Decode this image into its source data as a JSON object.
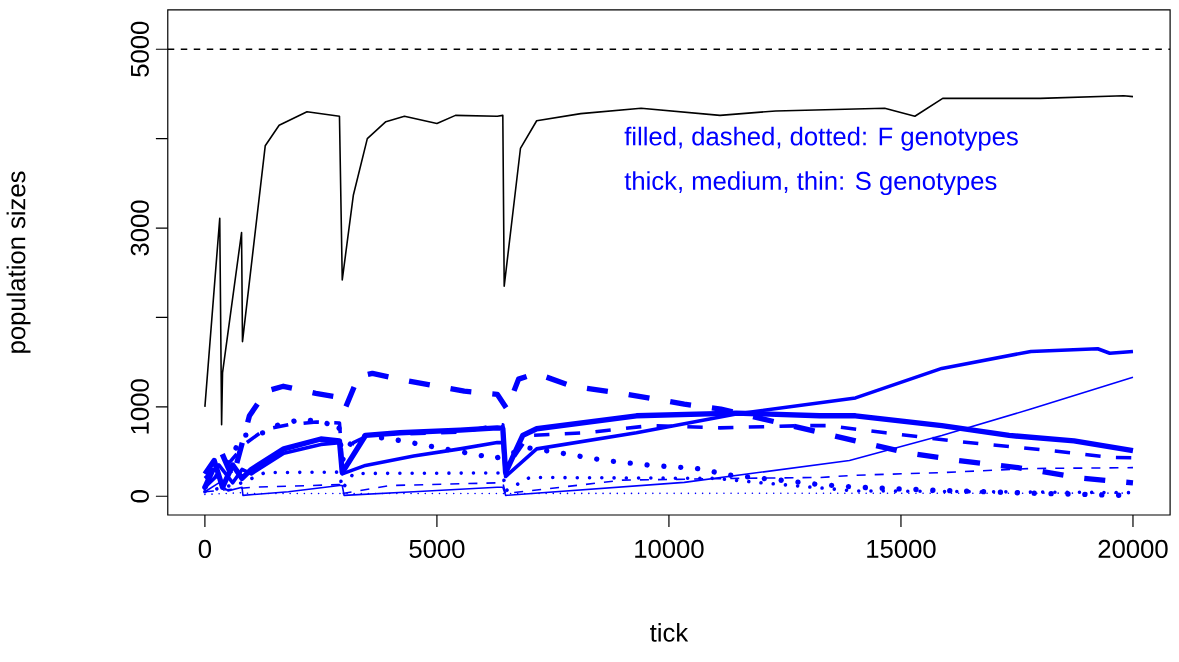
{
  "chart_data": {
    "type": "line",
    "xlabel": "tick",
    "ylabel": "population sizes",
    "xlim": [
      -800,
      20800
    ],
    "ylim": [
      -210,
      5440
    ],
    "xticks": [
      0,
      5000,
      10000,
      15000,
      20000
    ],
    "yticks": [
      0,
      1000,
      {
        "value": 2000,
        "label": null
      },
      3000,
      {
        "value": 4000,
        "label": null
      },
      5000
    ],
    "grid": false,
    "annotations": [
      "filled, dashed, dotted: F genotypes",
      "thick, medium, thin: S genotypes"
    ],
    "ref_lines": [
      {
        "axis": "y",
        "value": 5000,
        "color": "#000000",
        "line_style": "dashed"
      }
    ],
    "series": [
      {
        "color": "#000000",
        "line_style": "solid",
        "x": [
          0,
          320,
          360,
          380,
          790,
          810,
          1300,
          1600,
          2200,
          2900,
          2960,
          3200,
          3500,
          3900,
          4300,
          5000,
          5400,
          6300,
          6420,
          6450,
          6800,
          7150,
          8100,
          9400,
          11100,
          12300,
          14650,
          15300,
          15900,
          18000,
          19800,
          20000
        ],
        "values": [
          1000,
          3110,
          800,
          1380,
          2950,
          1730,
          3920,
          4150,
          4300,
          4250,
          2420,
          3370,
          4000,
          4190,
          4250,
          4170,
          4260,
          4250,
          4260,
          2350,
          3890,
          4200,
          4280,
          4340,
          4260,
          4310,
          4340,
          4250,
          4450,
          4450,
          4480,
          4470
        ]
      },
      {
        "color": "#0000ff",
        "line_style": "solid",
        "x": [
          0,
          200,
          380,
          600,
          800,
          1000,
          1700,
          2500,
          2900,
          2960,
          3460,
          4200,
          5500,
          6300,
          6420,
          6480,
          6850,
          7150,
          9300,
          11450,
          13250,
          14020,
          15880,
          17330,
          18730,
          20000
        ],
        "values": [
          250,
          400,
          100,
          350,
          200,
          300,
          530,
          640,
          620,
          265,
          680,
          710,
          740,
          765,
          760,
          265,
          680,
          755,
          900,
          930,
          900,
          900,
          790,
          680,
          620,
          510
        ]
      },
      {
        "color": "#0000ff",
        "line_style": "solid",
        "x": [
          0,
          300,
          600,
          800,
          1000,
          1700,
          2500,
          2900,
          2960,
          3460,
          4500,
          5500,
          6300,
          6420,
          6480,
          7150,
          9300,
          11450,
          14020,
          15880,
          17800,
          19240,
          19500,
          20000
        ],
        "values": [
          200,
          350,
          150,
          300,
          250,
          480,
          580,
          600,
          250,
          345,
          450,
          530,
          600,
          600,
          220,
          530,
          710,
          920,
          1100,
          1430,
          1620,
          1650,
          1600,
          1620
        ]
      },
      {
        "color": "#0000ff",
        "line_style": "solid",
        "x": [
          0,
          300,
          500,
          800,
          820,
          1800,
          2900,
          2960,
          3000,
          4500,
          6300,
          6420,
          6480,
          10330,
          13890,
          15880,
          17800,
          20000
        ],
        "values": [
          50,
          150,
          60,
          100,
          10,
          50,
          120,
          120,
          10,
          50,
          100,
          100,
          10,
          155,
          400,
          680,
          975,
          1330
        ]
      },
      {
        "color": "#0000ff",
        "line_style": "dashed",
        "x": [
          0,
          350,
          600,
          960,
          1320,
          1690,
          2390,
          2970,
          3030,
          3310,
          3610,
          4370,
          5590,
          6300,
          6510,
          6760,
          7130,
          7920,
          9110,
          10330,
          11120,
          14020,
          15090,
          16240,
          17520,
          18930,
          20000
        ],
        "values": [
          100,
          500,
          200,
          900,
          1175,
          1230,
          1150,
          1100,
          990,
          1340,
          1375,
          1290,
          1175,
          1140,
          975,
          1310,
          1375,
          1230,
          1140,
          1030,
          975,
          620,
          490,
          400,
          320,
          200,
          150
        ]
      },
      {
        "color": "#0000ff",
        "line_style": "dashed",
        "x": [
          0,
          400,
          900,
          1300,
          1800,
          2400,
          2900,
          2960,
          3200,
          3600,
          4400,
          5600,
          6300,
          6420,
          6480,
          6980,
          8200,
          9600,
          11100,
          12900,
          13400,
          14670,
          16100,
          18240,
          19530,
          20000
        ],
        "values": [
          100,
          300,
          600,
          750,
          800,
          830,
          820,
          400,
          600,
          700,
          700,
          720,
          800,
          800,
          300,
          680,
          710,
          790,
          765,
          790,
          790,
          710,
          620,
          510,
          435,
          430
        ]
      },
      {
        "color": "#0000ff",
        "line_style": "dashed",
        "x": [
          0,
          1000,
          2900,
          2960,
          4000,
          6300,
          6420,
          6480,
          9000,
          11500,
          13250,
          14020,
          15900,
          17800,
          20000
        ],
        "values": [
          50,
          100,
          130,
          30,
          120,
          150,
          150,
          30,
          180,
          200,
          210,
          235,
          265,
          310,
          320
        ]
      },
      {
        "color": "#0000ff",
        "line_style": "dotted",
        "x": [
          0,
          400,
          830,
          1260,
          1540,
          2110,
          2670,
          2880,
          2960,
          3140,
          3460,
          4250,
          4800,
          5950,
          6230,
          6980,
          7770,
          8620,
          9620,
          10610,
          11330,
          12400,
          13250,
          14110,
          15880,
          17800,
          19780
        ],
        "values": [
          100,
          300,
          680,
          710,
          790,
          865,
          810,
          820,
          400,
          590,
          680,
          620,
          565,
          455,
          420,
          540,
          475,
          400,
          345,
          310,
          235,
          180,
          130,
          100,
          65,
          35,
          10
        ]
      },
      {
        "color": "#0000ff",
        "line_style": "dotted",
        "x": [
          0,
          800,
          1300,
          2900,
          2960,
          3200,
          6300,
          6420,
          6480,
          7000,
          11000,
          12000,
          14000,
          17000,
          20000
        ],
        "values": [
          50,
          150,
          265,
          270,
          80,
          255,
          260,
          260,
          60,
          210,
          200,
          150,
          60,
          50,
          40
        ]
      },
      {
        "color": "#0000ff",
        "line_style": "dotted",
        "x": [
          0,
          800,
          1000,
          20000
        ],
        "values": [
          20,
          40,
          30,
          35
        ]
      }
    ]
  }
}
